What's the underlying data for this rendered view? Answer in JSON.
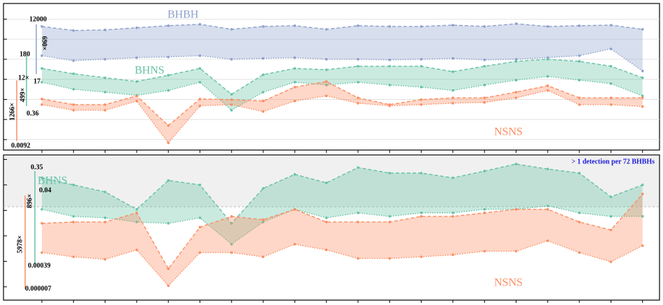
{
  "chart_data": [
    {
      "type": "line",
      "yscale": "log",
      "ylim": [
        0.003,
        60000
      ],
      "yticks": [
        0.01,
        0.1,
        1,
        10,
        100,
        1000,
        10000
      ],
      "grid": true,
      "categories": [
        null,
        null,
        null,
        null,
        null,
        null,
        null,
        null,
        null,
        null,
        null,
        null,
        null,
        null,
        null,
        null,
        null,
        null,
        null,
        null
      ],
      "series": [
        {
          "name": "BHBH",
          "color": "#8da0cb",
          "upper": [
            4300,
            2700,
            2900,
            3700,
            4700,
            5500,
            3100,
            4300,
            4700,
            3100,
            4700,
            4300,
            4300,
            5000,
            4300,
            5900,
            4300,
            4700,
            5000,
            3100
          ],
          "lower": [
            150,
            85,
            100,
            120,
            130,
            150,
            100,
            110,
            120,
            100,
            100,
            93,
            100,
            110,
            93,
            100,
            120,
            150,
            330,
            26
          ]
        },
        {
          "name": "BHNS",
          "color": "#66c2a5",
          "upper": [
            35,
            19,
            12,
            7.8,
            16,
            35,
            1.8,
            17,
            35,
            30,
            45,
            45,
            45,
            24,
            45,
            79,
            100,
            79,
            45,
            12
          ],
          "lower": [
            7.2,
            3.2,
            2.3,
            1.6,
            2.8,
            7.2,
            0.29,
            2.3,
            7.2,
            5.2,
            7.2,
            5.2,
            4.1,
            2.8,
            5.2,
            9.1,
            14,
            9.1,
            6.1,
            1.5
          ]
        },
        {
          "name": "NSNS",
          "color": "#fc8d62",
          "upper": [
            1.05,
            0.55,
            0.55,
            1.5,
            0.05,
            1.05,
            0.98,
            0.83,
            4.1,
            7.8,
            1.2,
            0.55,
            0.98,
            1.2,
            1.2,
            2.3,
            4.8,
            1.2,
            1.2,
            1.2
          ],
          "lower": [
            0.55,
            0.29,
            0.29,
            0.83,
            0.0069,
            0.48,
            0.55,
            0.25,
            0.83,
            1.5,
            0.65,
            0.48,
            0.55,
            0.65,
            0.71,
            1.2,
            2.8,
            0.55,
            0.55,
            0.44
          ]
        }
      ],
      "annotations": [
        "12000",
        "690×",
        "180",
        "17",
        "12×",
        "499×",
        "0.36",
        "1266×",
        "0.0092"
      ]
    },
    {
      "type": "line",
      "yscale": "log",
      "ylim": [
        3e-06,
        1.5
      ],
      "yticks": [
        1e-05,
        0.0001,
        0.001,
        0.01,
        0.1,
        1
      ],
      "grid": false,
      "threshold": 0.0139,
      "threshold_label": "> 1 detection per 72 BHBHs",
      "categories": [
        null,
        null,
        null,
        null,
        null,
        null,
        null,
        null,
        null,
        null,
        null,
        null,
        null,
        null,
        null,
        null,
        null,
        null,
        null,
        null
      ],
      "series": [
        {
          "name": "BHNS",
          "color": "#66c2a5",
          "upper": [
            0.19,
            0.1,
            0.053,
            0.011,
            0.15,
            0.1,
            0.0031,
            0.073,
            0.26,
            0.12,
            0.48,
            0.29,
            0.29,
            0.19,
            0.35,
            0.66,
            0.42,
            0.29,
            0.034,
            0.1
          ],
          "lower": [
            0.011,
            0.0058,
            0.0051,
            0.0035,
            0.0031,
            0.0051,
            0.00047,
            0.0035,
            0.011,
            0.0051,
            0.008,
            0.0058,
            0.008,
            0.008,
            0.011,
            0.011,
            0.015,
            0.008,
            0.0058,
            0.0058
          ]
        },
        {
          "name": "NSNS",
          "color": "#fc8d62",
          "upper": [
            0.0031,
            0.0035,
            0.0035,
            0.008,
            5.1e-05,
            0.0022,
            0.0058,
            0.0043,
            0.011,
            0.0035,
            0.0035,
            0.0035,
            0.0058,
            0.0058,
            0.008,
            0.011,
            0.011,
            0.0035,
            0.0017,
            0.044
          ],
          "lower": [
            0.00022,
            0.00015,
            0.00012,
            0.00028,
            1.1e-05,
            0.00022,
            0.00022,
            0.00015,
            0.00047,
            0.00028,
            0.00013,
            0.00013,
            0.00015,
            0.00018,
            0.00025,
            0.00025,
            0.00064,
            0.00022,
            9.6e-05,
            0.00041
          ]
        }
      ],
      "annotations": [
        "0.35",
        "0.04",
        "896×",
        "0.00039",
        "5978×",
        "0.000007"
      ]
    }
  ]
}
